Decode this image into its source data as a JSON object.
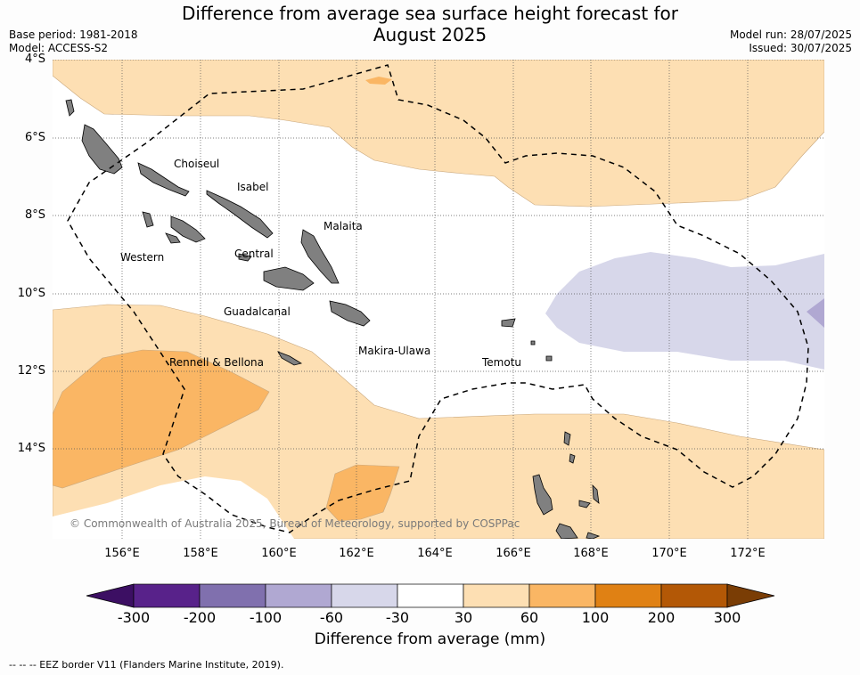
{
  "title_line1": "Difference from average sea surface height forecast for",
  "title_line2": "August 2025",
  "base_period": "Base period: 1981-2018",
  "model": "Model: ACCESS-S2",
  "model_run": "Model run: 28/07/2025",
  "issued": "Issued: 30/07/2025",
  "lat_labels": [
    "4°S",
    "6°S",
    "8°S",
    "10°S",
    "12°S",
    "14°S"
  ],
  "lon_labels": [
    "156°E",
    "158°E",
    "160°E",
    "162°E",
    "164°E",
    "166°E",
    "168°E",
    "170°E",
    "172°E"
  ],
  "province_labels": [
    "Choiseul",
    "Isabel",
    "Malaita",
    "Western",
    "Central",
    "Guadalcanal",
    "Makira-Ulawa",
    "Rennell & Bellona",
    "Temotu"
  ],
  "copyright": "© Commonwealth of Australia 2025, Bureau of Meteorology, supported by COSPPac",
  "colorbar": {
    "title": "Difference from average (mm)",
    "ticks": [
      "-300",
      "-200",
      "-100",
      "-60",
      "-30",
      "30",
      "60",
      "100",
      "200",
      "300"
    ],
    "colors": [
      "#3c0f63",
      "#58228a",
      "#8070ae",
      "#b0a8d2",
      "#d7d7ea",
      "#ffffff",
      "#fddfb3",
      "#fab664",
      "#e08114",
      "#b35806",
      "#7a3d05"
    ]
  },
  "footnote": "--  --  -- EEZ border V11 (Flanders Marine Institute, 2019)."
}
